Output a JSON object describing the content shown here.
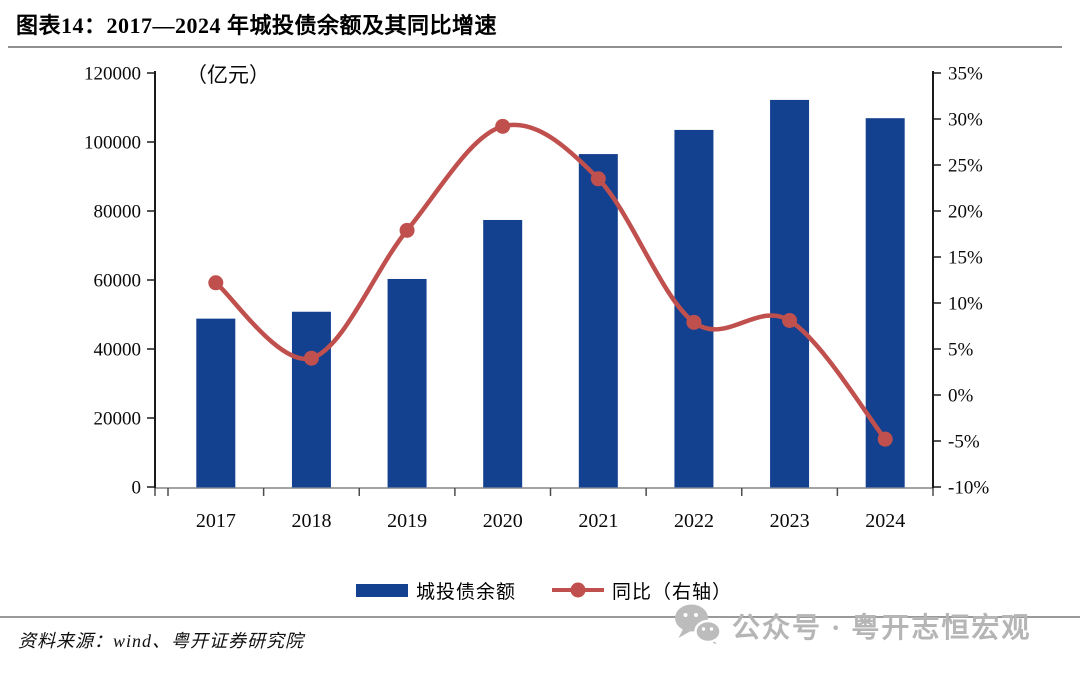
{
  "header": {
    "title": "图表14：2017—2024 年城投债余额及其同比增速"
  },
  "chart_data": {
    "type": "combo",
    "categories": [
      "2017",
      "2018",
      "2019",
      "2020",
      "2021",
      "2022",
      "2023",
      "2024"
    ],
    "series": [
      {
        "name": "城投债余额",
        "type": "bar",
        "axis": "left",
        "color": "#14418F",
        "values": [
          48800,
          50800,
          60300,
          77400,
          96500,
          103500,
          112200,
          106900
        ]
      },
      {
        "name": "同比（右轴）",
        "type": "line",
        "axis": "right",
        "color": "#C0504D",
        "values": [
          12.2,
          4.0,
          17.9,
          29.2,
          23.5,
          7.9,
          8.1,
          -4.8
        ]
      }
    ],
    "left_axis": {
      "unit_label": "（亿元）",
      "min": 0,
      "max": 120000,
      "step": 20000,
      "ticks": [
        "120000",
        "100000",
        "80000",
        "60000",
        "40000",
        "20000",
        "0"
      ]
    },
    "right_axis": {
      "min": -10,
      "max": 35,
      "step": 5,
      "ticks": [
        "35%",
        "30%",
        "25%",
        "20%",
        "15%",
        "10%",
        "5%",
        "0%",
        "-5%",
        "-10%"
      ]
    },
    "legend": [
      {
        "label": "城投债余额"
      },
      {
        "label": "同比（右轴）"
      }
    ],
    "grid": "off",
    "legend_position": "bottom"
  },
  "footer": {
    "source": "资料来源：wind、粤开证券研究院",
    "watermark": "公众号 · 粤开志恒宏观"
  }
}
